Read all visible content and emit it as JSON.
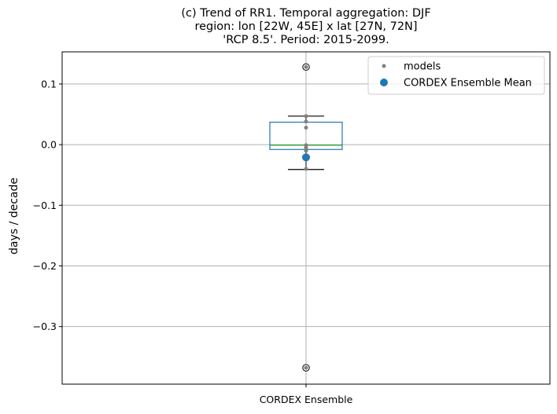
{
  "chart_data": {
    "type": "box",
    "title": [
      "(c) Trend of RR1. Temporal aggregation: DJF",
      "region: lon [22W, 45E] x lat [27N, 72N]",
      "'RCP 8.5'. Period: 2015-2099."
    ],
    "ylabel": "days / decade",
    "xlabel": "",
    "categories": [
      "CORDEX Ensemble"
    ],
    "ylim": [
      -0.395,
      0.153
    ],
    "yticks": [
      0.1,
      0.0,
      -0.1,
      -0.2,
      -0.3
    ],
    "ytick_labels": [
      "0.1",
      "0.0",
      "−0.1",
      "−0.2",
      "−0.3"
    ],
    "grid": true,
    "legend_position": "top-right",
    "box": {
      "whisker_low": -0.041,
      "q1": -0.008,
      "median": -0.001,
      "q3": 0.037,
      "whisker_high": 0.047,
      "outliers": [
        0.128,
        -0.368
      ]
    },
    "series": [
      {
        "name": "models",
        "values": [
          0.128,
          0.047,
          0.038,
          0.028,
          -0.001,
          -0.005,
          -0.01,
          -0.04,
          -0.368
        ]
      },
      {
        "name": "CORDEX Ensemble Mean",
        "values": [
          -0.021
        ]
      }
    ],
    "colors": {
      "box": "#1f77b4",
      "median": "#2ca02c",
      "models": "#808080",
      "mean": "#1f77b4",
      "grid": "#b0b0b0"
    }
  }
}
